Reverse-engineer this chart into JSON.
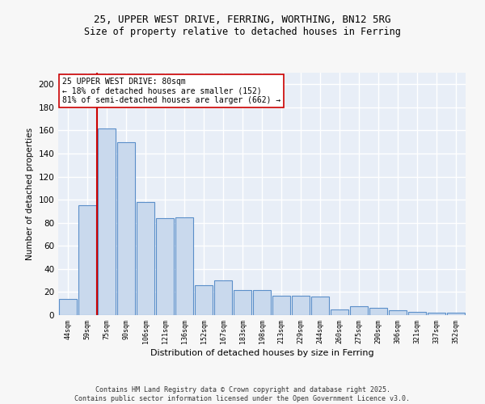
{
  "title_line1": "25, UPPER WEST DRIVE, FERRING, WORTHING, BN12 5RG",
  "title_line2": "Size of property relative to detached houses in Ferring",
  "xlabel": "Distribution of detached houses by size in Ferring",
  "ylabel": "Number of detached properties",
  "categories": [
    "44sqm",
    "59sqm",
    "75sqm",
    "90sqm",
    "106sqm",
    "121sqm",
    "136sqm",
    "152sqm",
    "167sqm",
    "183sqm",
    "198sqm",
    "213sqm",
    "229sqm",
    "244sqm",
    "260sqm",
    "275sqm",
    "290sqm",
    "306sqm",
    "321sqm",
    "337sqm",
    "352sqm"
  ],
  "values": [
    14,
    95,
    162,
    150,
    98,
    84,
    85,
    26,
    30,
    22,
    22,
    17,
    17,
    16,
    5,
    8,
    6,
    4,
    3,
    2,
    2
  ],
  "bar_color": "#c9d9ed",
  "bar_edge_color": "#5b8fc9",
  "annotation_text": "25 UPPER WEST DRIVE: 80sqm\n← 18% of detached houses are smaller (152)\n81% of semi-detached houses are larger (662) →",
  "vline_position": 1.5,
  "vline_color": "#cc0000",
  "annotation_box_edge": "#cc0000",
  "ylim": [
    0,
    210
  ],
  "yticks": [
    0,
    20,
    40,
    60,
    80,
    100,
    120,
    140,
    160,
    180,
    200
  ],
  "background_color": "#e8eef7",
  "grid_color": "#ffffff",
  "fig_background": "#f7f7f7",
  "footer_line1": "Contains HM Land Registry data © Crown copyright and database right 2025.",
  "footer_line2": "Contains public sector information licensed under the Open Government Licence v3.0."
}
